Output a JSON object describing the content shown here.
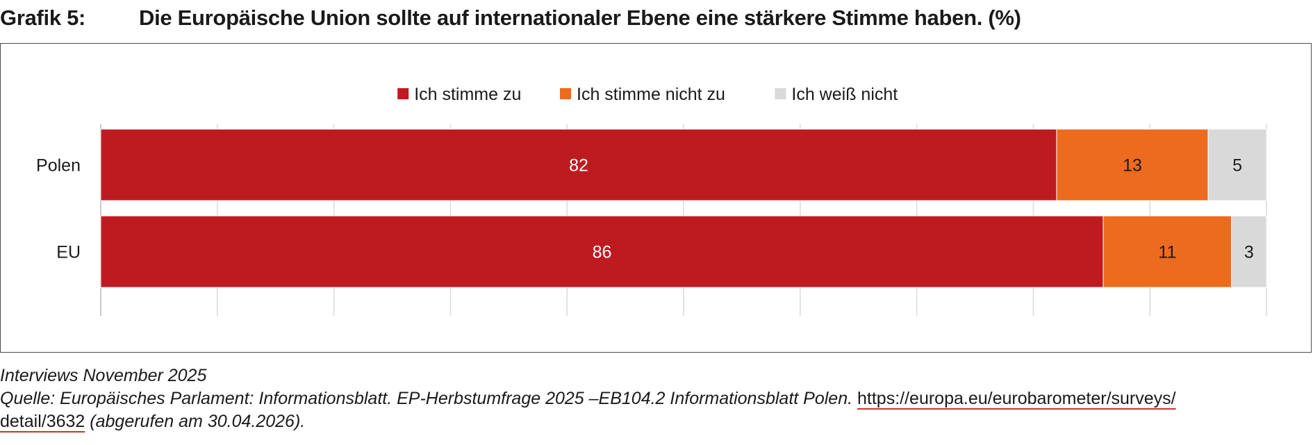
{
  "figure": {
    "label": "Grafik 5:",
    "title": "Die Europäische Union sollte auf internationaler Ebene eine stärkere Stimme haben. (%)"
  },
  "chart_data": {
    "type": "bar",
    "orientation": "horizontal",
    "stacked": true,
    "categories": [
      "Polen",
      "EU"
    ],
    "series": [
      {
        "name": "Ich stimme zu",
        "color": "#be1b21",
        "label_color": "#ffffff",
        "values": [
          82,
          86
        ]
      },
      {
        "name": "Ich stimme nicht zu",
        "color": "#ec6b1e",
        "label_color": "#1a1a1a",
        "values": [
          13,
          11
        ]
      },
      {
        "name": "Ich weiß nicht",
        "color": "#d9d9d9",
        "label_color": "#1a1a1a",
        "values": [
          5,
          3
        ]
      }
    ],
    "xlim": [
      0,
      100
    ],
    "grid": "vertical",
    "legend_position": "top-center",
    "data_labels": true
  },
  "notes": {
    "interviews": "Interviews November 2025",
    "source_prefix": "Quelle: Europäisches Parlament: Informationsblatt. EP-Herbstumfrage 2025 –EB104.2 Informationsblatt Polen.",
    "link_part1": "https://europa.eu/eurobarometer/surveys/",
    "link_part2": "detail/3632",
    "source_suffix": "(abgerufen am 30.04.2026)."
  }
}
